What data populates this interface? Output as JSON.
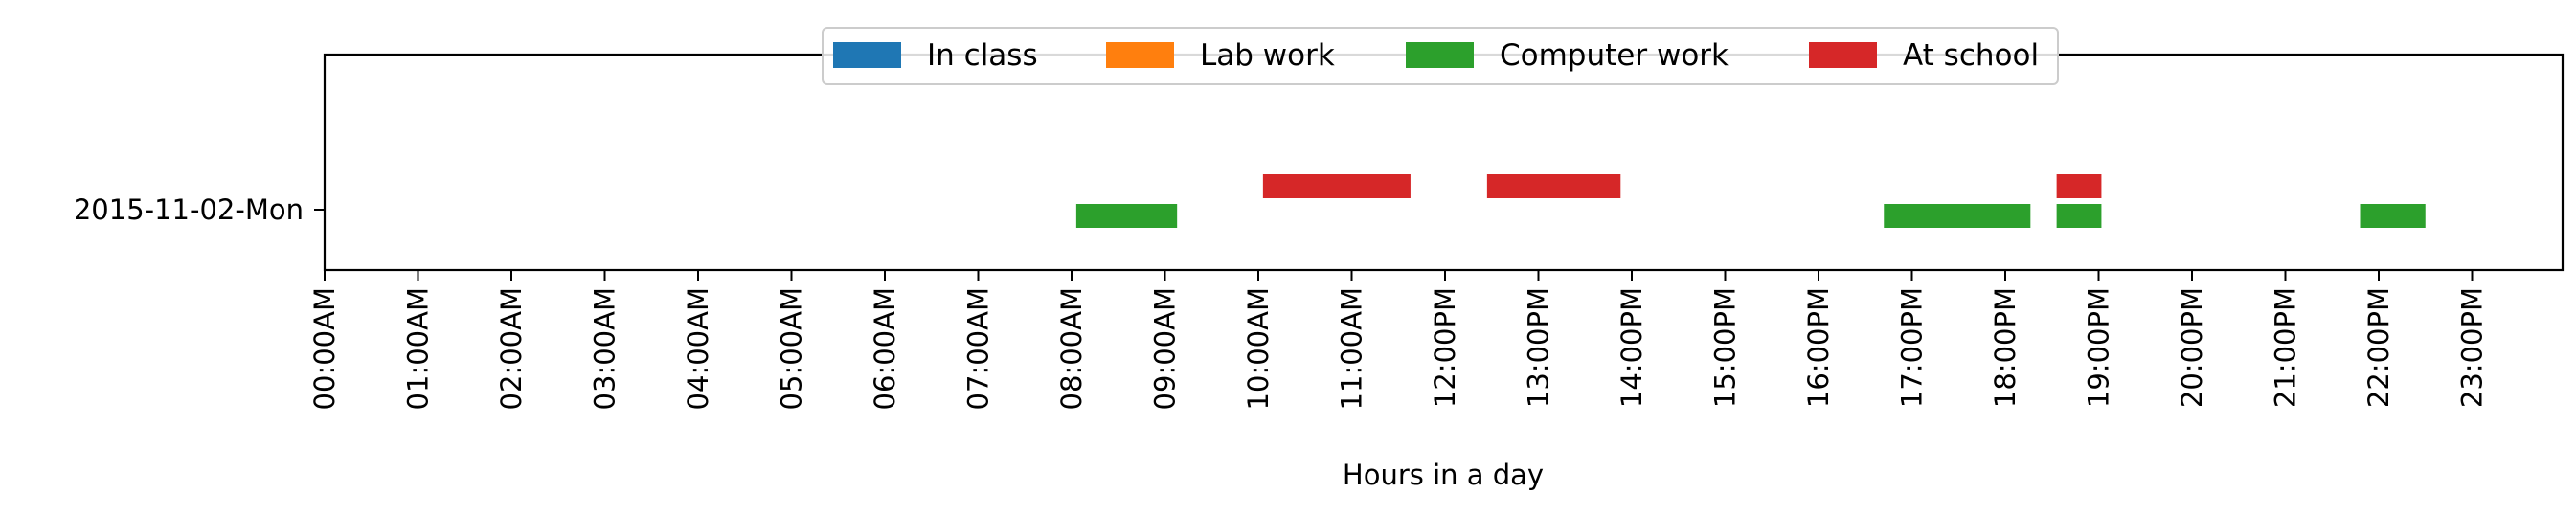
{
  "chart_data": {
    "type": "bar",
    "orientation": "horizontal-timeline",
    "title": "",
    "xlabel": "Hours in a day",
    "ylabel": "",
    "xlim": [
      0,
      24
    ],
    "x_ticks": [
      {
        "value": 0,
        "label": "00:00AM"
      },
      {
        "value": 1,
        "label": "01:00AM"
      },
      {
        "value": 2,
        "label": "02:00AM"
      },
      {
        "value": 3,
        "label": "03:00AM"
      },
      {
        "value": 4,
        "label": "04:00AM"
      },
      {
        "value": 5,
        "label": "05:00AM"
      },
      {
        "value": 6,
        "label": "06:00AM"
      },
      {
        "value": 7,
        "label": "07:00AM"
      },
      {
        "value": 8,
        "label": "08:00AM"
      },
      {
        "value": 9,
        "label": "09:00AM"
      },
      {
        "value": 10,
        "label": "10:00AM"
      },
      {
        "value": 11,
        "label": "11:00AM"
      },
      {
        "value": 12,
        "label": "12:00PM"
      },
      {
        "value": 13,
        "label": "13:00PM"
      },
      {
        "value": 14,
        "label": "14:00PM"
      },
      {
        "value": 15,
        "label": "15:00PM"
      },
      {
        "value": 16,
        "label": "16:00PM"
      },
      {
        "value": 17,
        "label": "17:00PM"
      },
      {
        "value": 18,
        "label": "18:00PM"
      },
      {
        "value": 19,
        "label": "19:00PM"
      },
      {
        "value": 20,
        "label": "20:00PM"
      },
      {
        "value": 21,
        "label": "21:00PM"
      },
      {
        "value": 22,
        "label": "22:00PM"
      },
      {
        "value": 23,
        "label": "23:00PM"
      }
    ],
    "categories": [
      "2015-11-02-Mon"
    ],
    "grid": false,
    "legend": {
      "placement": "top-center",
      "columns": 4
    },
    "series": [
      {
        "name": "In class",
        "color": "#1f77b4",
        "lane": "lower",
        "intervals": []
      },
      {
        "name": "Lab work",
        "color": "#ff7f0e",
        "lane": "lower",
        "intervals": []
      },
      {
        "name": "Computer work",
        "color": "#2ca02c",
        "lane": "lower",
        "intervals": [
          {
            "category": "2015-11-02-Mon",
            "start": 8.05,
            "end": 9.13
          },
          {
            "category": "2015-11-02-Mon",
            "start": 16.7,
            "end": 18.27
          },
          {
            "category": "2015-11-02-Mon",
            "start": 18.55,
            "end": 19.03
          },
          {
            "category": "2015-11-02-Mon",
            "start": 21.8,
            "end": 22.5
          }
        ]
      },
      {
        "name": "At school",
        "color": "#d62728",
        "lane": "upper",
        "intervals": [
          {
            "category": "2015-11-02-Mon",
            "start": 10.05,
            "end": 11.63
          },
          {
            "category": "2015-11-02-Mon",
            "start": 12.45,
            "end": 13.88
          },
          {
            "category": "2015-11-02-Mon",
            "start": 18.55,
            "end": 19.03
          }
        ]
      }
    ]
  }
}
